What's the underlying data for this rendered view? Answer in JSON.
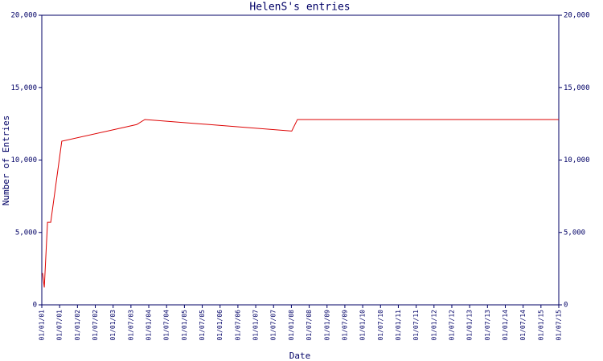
{
  "chart_data": {
    "type": "line",
    "title": "HelenS's entries",
    "x_label": "Date",
    "y_label": "Number of Entries",
    "x": [
      2001.02,
      2001.07,
      2001.11,
      2001.16,
      2001.25,
      2001.56,
      2003.66,
      2003.89,
      2008.01,
      2008.17,
      2015.5
    ],
    "series": [
      {
        "name": "Entries",
        "color": "#dd0000",
        "values": [
          2200,
          1200,
          3200,
          5700,
          5700,
          11300,
          12450,
          12800,
          12000,
          12800,
          12800
        ]
      }
    ],
    "xlim": [
      2001,
      2015.5
    ],
    "xticks": [
      {
        "value": 2001,
        "label": "01/01/01"
      },
      {
        "value": 2001.5,
        "label": "01/07/01"
      },
      {
        "value": 2002,
        "label": "01/01/02"
      },
      {
        "value": 2002.5,
        "label": "01/07/02"
      },
      {
        "value": 2003,
        "label": "01/01/03"
      },
      {
        "value": 2003.5,
        "label": "01/07/03"
      },
      {
        "value": 2004,
        "label": "01/01/04"
      },
      {
        "value": 2004.5,
        "label": "01/07/04"
      },
      {
        "value": 2005,
        "label": "01/01/05"
      },
      {
        "value": 2005.5,
        "label": "01/07/05"
      },
      {
        "value": 2006,
        "label": "01/01/06"
      },
      {
        "value": 2006.5,
        "label": "01/07/06"
      },
      {
        "value": 2007,
        "label": "01/01/07"
      },
      {
        "value": 2007.5,
        "label": "01/07/07"
      },
      {
        "value": 2008,
        "label": "01/01/08"
      },
      {
        "value": 2008.5,
        "label": "01/07/08"
      },
      {
        "value": 2009,
        "label": "01/01/09"
      },
      {
        "value": 2009.5,
        "label": "01/07/09"
      },
      {
        "value": 2010,
        "label": "01/01/10"
      },
      {
        "value": 2010.5,
        "label": "01/07/10"
      },
      {
        "value": 2011,
        "label": "01/01/11"
      },
      {
        "value": 2011.5,
        "label": "01/07/11"
      },
      {
        "value": 2012,
        "label": "01/01/12"
      },
      {
        "value": 2012.5,
        "label": "01/07/12"
      },
      {
        "value": 2013,
        "label": "01/01/13"
      },
      {
        "value": 2013.5,
        "label": "01/07/13"
      },
      {
        "value": 2014,
        "label": "01/01/14"
      },
      {
        "value": 2014.5,
        "label": "01/07/14"
      },
      {
        "value": 2015,
        "label": "01/01/15"
      },
      {
        "value": 2015.5,
        "label": "01/07/15"
      }
    ],
    "ylim": [
      0,
      20000
    ],
    "yticks": [
      0,
      {
        "value": 5000,
        "label": "5,000"
      },
      {
        "value": 10000,
        "label": "10,000"
      },
      {
        "value": 15000,
        "label": "15,000"
      },
      {
        "value": 20000,
        "label": "20,000"
      }
    ],
    "y2lim": [
      0,
      20000
    ],
    "y2ticks": [
      0,
      {
        "value": 5000,
        "label": "5,000"
      },
      {
        "value": 10000,
        "label": "10,000"
      },
      {
        "value": 15000,
        "label": "15,000"
      },
      {
        "value": 20000,
        "label": "20,000"
      }
    ],
    "axis_color": "#000066"
  }
}
